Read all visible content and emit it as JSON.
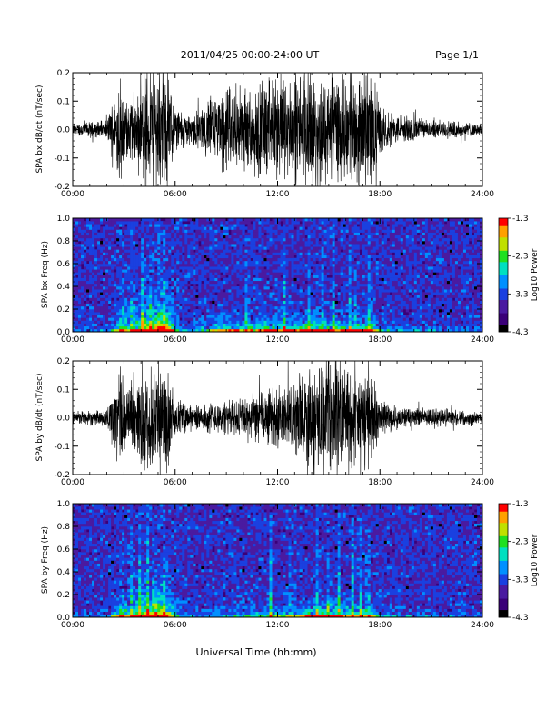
{
  "header": {
    "title": "2011/04/25  00:00-24:00 UT",
    "page": "Page 1/1"
  },
  "xaxis": {
    "label": "Universal Time (hh:mm)",
    "ticks": [
      "00:00",
      "06:00",
      "12:00",
      "18:00",
      "24:00"
    ],
    "range_hours": [
      0,
      24
    ]
  },
  "colorbar": {
    "label": "Log10 Power",
    "ticks": [
      "-1.3",
      "-2.3",
      "-3.3",
      "-4.3"
    ],
    "range": [
      -4.3,
      -1.3
    ],
    "colors": [
      "#000000",
      "#3a0078",
      "#4a1aa0",
      "#1a40e0",
      "#0090ff",
      "#00e0c0",
      "#20e020",
      "#c0e000",
      "#ffa000",
      "#ff0000"
    ]
  },
  "chart_data": [
    {
      "type": "line",
      "ylabel": "SPA bx dB/dt (nT/sec)",
      "ylim": [
        -0.2,
        0.2
      ],
      "yticks": [
        "0.2",
        "0.1",
        "0.0",
        "-0.1",
        "-0.2"
      ],
      "activity_envelope": {
        "x_hours": [
          0,
          2,
          2.8,
          3.2,
          4,
          4.5,
          5,
          5.5,
          6,
          7,
          8,
          9,
          10,
          11,
          12,
          13,
          14,
          15,
          16,
          17,
          17.5,
          18,
          19,
          20,
          21,
          22,
          24
        ],
        "amplitude": [
          0.02,
          0.03,
          0.18,
          0.1,
          0.16,
          0.2,
          0.2,
          0.2,
          0.08,
          0.05,
          0.1,
          0.15,
          0.14,
          0.16,
          0.18,
          0.17,
          0.2,
          0.18,
          0.16,
          0.18,
          0.2,
          0.08,
          0.05,
          0.04,
          0.03,
          0.03,
          0.02
        ]
      }
    },
    {
      "type": "heatmap",
      "ylabel": "SPA bx Freq (Hz)",
      "ylim": [
        0.0,
        1.0
      ],
      "yticks": [
        "1.0",
        "0.8",
        "0.6",
        "0.4",
        "0.2",
        "0.0"
      ],
      "burst_hours": [
        2.9,
        3.5,
        4.1,
        4.6,
        5.1,
        5.4,
        10.2,
        12.4,
        13.8,
        14.7,
        15.3,
        16.2,
        16.6,
        17.4
      ]
    },
    {
      "type": "line",
      "ylabel": "SPA by dB/dt (nT/sec)",
      "ylim": [
        -0.2,
        0.2
      ],
      "yticks": [
        "0.2",
        "0.1",
        "0.0",
        "-0.1",
        "-0.2"
      ],
      "activity_envelope": {
        "x_hours": [
          0,
          2,
          2.8,
          3.2,
          4,
          4.5,
          5,
          5.5,
          6,
          7,
          8,
          9,
          10,
          11,
          12,
          13,
          14,
          15,
          16,
          17,
          17.5,
          18,
          19,
          20,
          21,
          22,
          24
        ],
        "amplitude": [
          0.02,
          0.03,
          0.18,
          0.1,
          0.15,
          0.18,
          0.2,
          0.18,
          0.06,
          0.04,
          0.05,
          0.06,
          0.07,
          0.08,
          0.1,
          0.12,
          0.18,
          0.2,
          0.16,
          0.14,
          0.16,
          0.06,
          0.04,
          0.03,
          0.03,
          0.03,
          0.02
        ]
      }
    },
    {
      "type": "heatmap",
      "ylabel": "SPA by Freq (Hz)",
      "ylim": [
        0.0,
        1.0
      ],
      "yticks": [
        "1.0",
        "0.8",
        "0.6",
        "0.4",
        "0.2",
        "0.0"
      ],
      "burst_hours": [
        2.9,
        3.4,
        3.9,
        4.4,
        4.8,
        5.3,
        11.6,
        12.8,
        14.3,
        15.0,
        15.6,
        16.4,
        16.9,
        17.3
      ]
    }
  ]
}
